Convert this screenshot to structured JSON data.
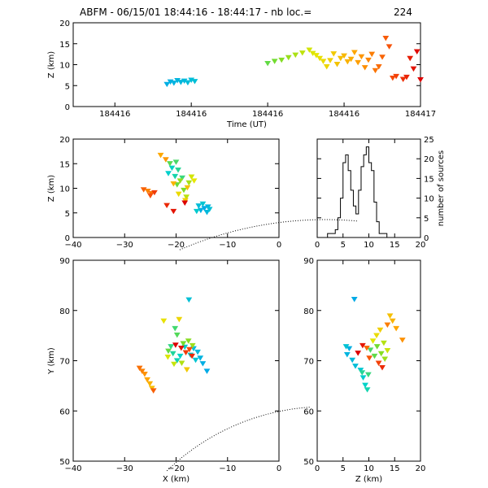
{
  "title": {
    "text": "ABFM - 06/15/01 18:44:16 - 18:44:17 - nb loc.=",
    "count": "224"
  },
  "chart_data": [
    {
      "id": "time_z",
      "type": "scatter",
      "xlabel": "Time (UT)",
      "ylabel": "Z (km)",
      "ylim": [
        0,
        20
      ],
      "xlim": [
        0,
        1
      ],
      "x_tick_labels": [
        "184416",
        "184416",
        "184416",
        "184416",
        "184416",
        "184417"
      ],
      "y_ticks": [
        0,
        5,
        10,
        15,
        20
      ],
      "color_by": "time",
      "points": [
        [
          0.27,
          5.4
        ],
        [
          0.28,
          6.0
        ],
        [
          0.29,
          5.7
        ],
        [
          0.3,
          6.3
        ],
        [
          0.31,
          5.9
        ],
        [
          0.32,
          6.2
        ],
        [
          0.33,
          5.8
        ],
        [
          0.34,
          6.4
        ],
        [
          0.35,
          6.1
        ],
        [
          0.56,
          10.4
        ],
        [
          0.58,
          10.9
        ],
        [
          0.6,
          11.2
        ],
        [
          0.62,
          11.8
        ],
        [
          0.64,
          12.4
        ],
        [
          0.66,
          12.9
        ],
        [
          0.68,
          13.6
        ],
        [
          0.69,
          12.8
        ],
        [
          0.7,
          12.3
        ],
        [
          0.71,
          11.6
        ],
        [
          0.72,
          10.9
        ],
        [
          0.73,
          9.6
        ],
        [
          0.74,
          11.1
        ],
        [
          0.75,
          12.7
        ],
        [
          0.76,
          10.2
        ],
        [
          0.77,
          11.6
        ],
        [
          0.78,
          12.2
        ],
        [
          0.79,
          10.8
        ],
        [
          0.8,
          11.4
        ],
        [
          0.81,
          13.0
        ],
        [
          0.82,
          10.6
        ],
        [
          0.83,
          12.0
        ],
        [
          0.84,
          9.4
        ],
        [
          0.85,
          11.2
        ],
        [
          0.86,
          12.6
        ],
        [
          0.87,
          8.7
        ],
        [
          0.88,
          9.6
        ],
        [
          0.89,
          11.9
        ],
        [
          0.9,
          16.4
        ],
        [
          0.91,
          14.4
        ],
        [
          0.92,
          6.9
        ],
        [
          0.93,
          7.3
        ],
        [
          0.95,
          6.6
        ],
        [
          0.96,
          7.1
        ],
        [
          0.97,
          11.6
        ],
        [
          0.98,
          9.1
        ],
        [
          0.99,
          13.2
        ],
        [
          1.0,
          6.5
        ]
      ]
    },
    {
      "id": "x_z",
      "type": "scatter",
      "xlabel": "",
      "ylabel": "Z (km)",
      "xlim": [
        -40,
        0
      ],
      "ylim": [
        0,
        20
      ],
      "x_ticks": [
        -40,
        -30,
        -20,
        -10,
        0
      ],
      "y_ticks": [
        0,
        5,
        10,
        15,
        20
      ],
      "color_by": "time",
      "points": [
        [
          -14.5,
          6.0
        ],
        [
          -15.2,
          5.6
        ],
        [
          -13.8,
          6.3
        ],
        [
          -14.0,
          5.2
        ],
        [
          -15.6,
          6.5
        ],
        [
          -13.5,
          5.8
        ],
        [
          -14.8,
          6.9
        ],
        [
          -16.0,
          5.4
        ],
        [
          -21.5,
          13.1
        ],
        [
          -20.8,
          14.2
        ],
        [
          -20.2,
          12.5
        ],
        [
          -19.6,
          13.8
        ],
        [
          -18.8,
          12.2
        ],
        [
          -20.0,
          15.4
        ],
        [
          -21.2,
          15.1
        ],
        [
          -19.8,
          10.8
        ],
        [
          -18.5,
          9.7
        ],
        [
          -19.2,
          11.6
        ],
        [
          -17.5,
          11.2
        ],
        [
          -18.0,
          8.3
        ],
        [
          -17.0,
          12.4
        ],
        [
          -16.5,
          11.6
        ],
        [
          -19.5,
          8.9
        ],
        [
          -18.2,
          7.6
        ],
        [
          -17.8,
          10.2
        ],
        [
          -20.5,
          11.0
        ],
        [
          -23.0,
          16.8
        ],
        [
          -22.0,
          15.9
        ],
        [
          -25.5,
          9.5
        ],
        [
          -24.8,
          9.0
        ],
        [
          -26.3,
          9.8
        ],
        [
          -25.0,
          8.6
        ],
        [
          -24.2,
          9.2
        ],
        [
          -21.8,
          6.6
        ],
        [
          -20.5,
          5.4
        ],
        [
          -18.3,
          7.1
        ]
      ]
    },
    {
      "id": "z_hist",
      "type": "histogram",
      "xlabel": "",
      "ylabel": "number of sources",
      "xlim": [
        0,
        20
      ],
      "ylim": [
        0,
        25
      ],
      "x_ticks": [
        0,
        5,
        10,
        15,
        20
      ],
      "y_ticks": [
        0,
        5,
        10,
        15,
        20,
        25
      ],
      "bin_width": 0.5,
      "bin_start": 2.0,
      "counts": [
        1,
        1,
        1,
        2,
        5,
        10,
        19,
        21,
        17,
        12,
        8,
        6,
        12,
        18,
        21,
        23,
        19,
        17,
        9,
        4,
        1,
        1,
        1
      ]
    },
    {
      "id": "x_y",
      "type": "scatter",
      "xlabel": "X (km)",
      "ylabel": "Y (km)",
      "xlim": [
        -40,
        0
      ],
      "ylim": [
        50,
        90
      ],
      "x_ticks": [
        -40,
        -30,
        -20,
        -10,
        0
      ],
      "y_ticks": [
        50,
        60,
        70,
        80,
        90
      ],
      "color_by": "time",
      "points": [
        [
          -14.0,
          68.0
        ],
        [
          -14.8,
          69.5
        ],
        [
          -15.3,
          70.6
        ],
        [
          -15.8,
          71.8
        ],
        [
          -16.6,
          72.5
        ],
        [
          -17.5,
          82.2
        ],
        [
          -16.2,
          70.2
        ],
        [
          -17.2,
          71.2
        ],
        [
          -18.3,
          72.8
        ],
        [
          -19.2,
          71.0
        ],
        [
          -19.8,
          70.1
        ],
        [
          -20.6,
          71.5
        ],
        [
          -21.0,
          72.9
        ],
        [
          -20.2,
          76.5
        ],
        [
          -19.8,
          75.2
        ],
        [
          -21.5,
          72.0
        ],
        [
          -18.6,
          73.5
        ],
        [
          -17.6,
          74.0
        ],
        [
          -16.8,
          73.1
        ],
        [
          -18.9,
          69.6
        ],
        [
          -20.4,
          69.4
        ],
        [
          -21.6,
          70.8
        ],
        [
          -22.4,
          78.0
        ],
        [
          -19.4,
          78.3
        ],
        [
          -17.9,
          68.3
        ],
        [
          -24.7,
          64.6
        ],
        [
          -25.1,
          65.5
        ],
        [
          -25.6,
          66.3
        ],
        [
          -26.1,
          67.4
        ],
        [
          -26.6,
          68.0
        ],
        [
          -27.1,
          68.6
        ],
        [
          -24.4,
          64.1
        ],
        [
          -17.4,
          72.3
        ],
        [
          -18.1,
          71.7
        ],
        [
          -16.9,
          71.0
        ],
        [
          -19.0,
          72.6
        ],
        [
          -20.1,
          73.2
        ]
      ],
      "annotations": [
        "dotted range ring (upper)",
        "dotted range ring (lower)"
      ]
    },
    {
      "id": "z_y",
      "type": "scatter",
      "xlabel": "Z (km)",
      "ylabel": "",
      "xlim": [
        0,
        20
      ],
      "ylim": [
        50,
        90
      ],
      "x_ticks": [
        0,
        5,
        10,
        15,
        20
      ],
      "y_ticks": [
        50,
        60,
        70,
        80,
        90
      ],
      "color_by": "time",
      "points": [
        [
          7.2,
          82.3
        ],
        [
          6.2,
          72.5
        ],
        [
          5.8,
          71.3
        ],
        [
          6.8,
          70.2
        ],
        [
          7.4,
          69.0
        ],
        [
          5.6,
          72.9
        ],
        [
          8.4,
          68.2
        ],
        [
          8.9,
          66.7
        ],
        [
          9.3,
          65.2
        ],
        [
          9.7,
          64.3
        ],
        [
          8.7,
          67.7
        ],
        [
          9.9,
          67.3
        ],
        [
          10.3,
          72.2
        ],
        [
          11.1,
          71.0
        ],
        [
          11.6,
          72.9
        ],
        [
          12.4,
          71.5
        ],
        [
          13.1,
          70.4
        ],
        [
          12.9,
          73.6
        ],
        [
          13.6,
          72.1
        ],
        [
          10.8,
          74.0
        ],
        [
          11.5,
          75.1
        ],
        [
          12.2,
          76.2
        ],
        [
          14.1,
          79.0
        ],
        [
          14.6,
          78.0
        ],
        [
          15.3,
          76.5
        ],
        [
          16.5,
          74.2
        ],
        [
          13.6,
          77.2
        ],
        [
          9.6,
          72.6
        ],
        [
          10.1,
          70.6
        ],
        [
          11.9,
          69.6
        ],
        [
          12.6,
          68.7
        ],
        [
          8.8,
          73.1
        ],
        [
          7.9,
          71.6
        ]
      ]
    }
  ]
}
